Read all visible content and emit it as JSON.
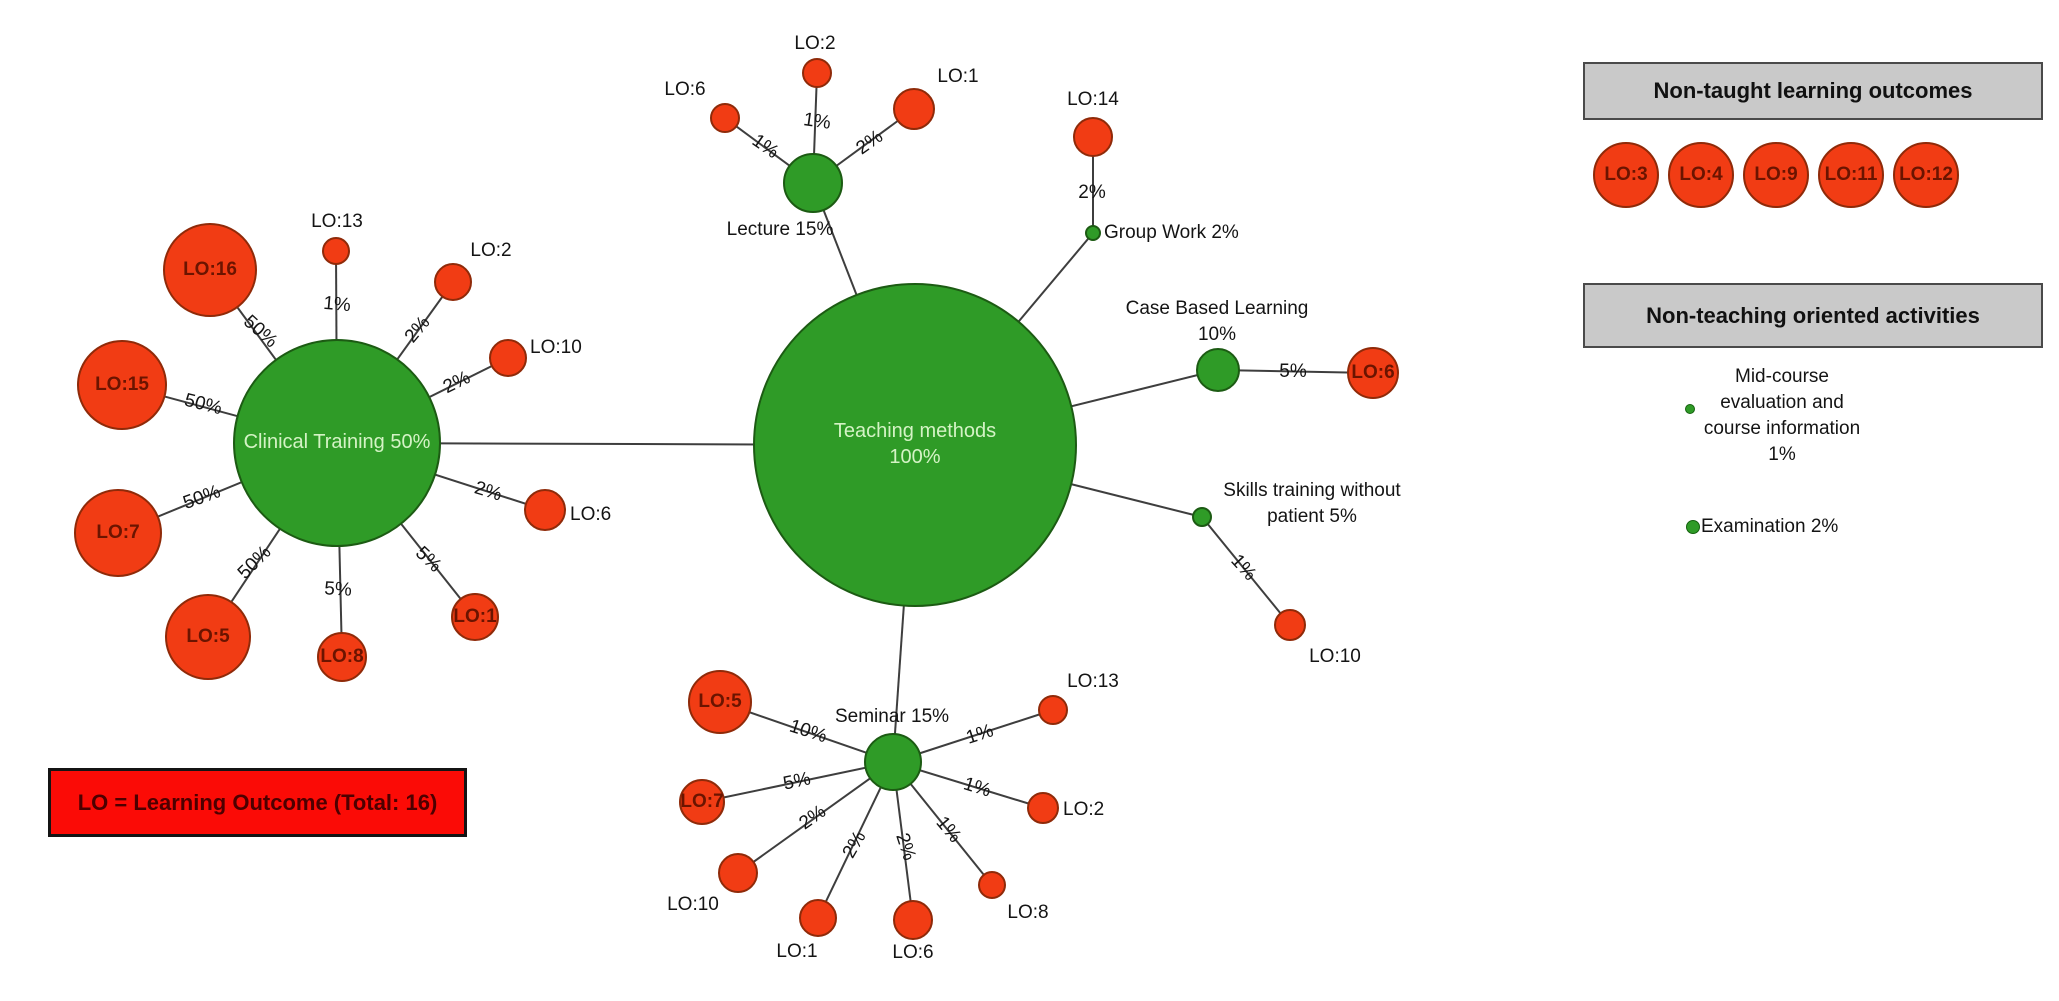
{
  "colors": {
    "method_green": "#2f9b27",
    "outcome_red": "#f13c14",
    "legend_gray": "#c9c9c9",
    "note_red": "#fb0b06",
    "edge_gray": "#3e3e3e",
    "green_label_text": "#d4f3c5",
    "red_label_text": "#6b1400"
  },
  "nodes": [
    {
      "id": "teaching",
      "label": "Teaching methods\n100%"
    },
    {
      "id": "clinical",
      "label": "Clinical Training 50%"
    },
    {
      "id": "lecture",
      "label": "Lecture 15%"
    },
    {
      "id": "seminar",
      "label": "Seminar 15%"
    },
    {
      "id": "casebased",
      "label": "Case Based Learning\n10%"
    },
    {
      "id": "skills",
      "label": "Skills training without\npatient 5%"
    },
    {
      "id": "groupwork",
      "label": "Group Work 2%"
    },
    {
      "id": "lec_lo6",
      "label": "LO:6"
    },
    {
      "id": "lec_lo2",
      "label": "LO:2"
    },
    {
      "id": "lec_lo1",
      "label": "LO:1"
    },
    {
      "id": "gw_lo14",
      "label": "LO:14"
    },
    {
      "id": "cb_lo6",
      "label": "LO:6"
    },
    {
      "id": "sk_lo10",
      "label": "LO:10"
    },
    {
      "id": "sem_lo5",
      "label": "LO:5"
    },
    {
      "id": "sem_lo7",
      "label": "LO:7"
    },
    {
      "id": "sem_lo10",
      "label": "LO:10"
    },
    {
      "id": "sem_lo1",
      "label": "LO:1"
    },
    {
      "id": "sem_lo6",
      "label": "LO:6"
    },
    {
      "id": "sem_lo8",
      "label": "LO:8"
    },
    {
      "id": "sem_lo2",
      "label": "LO:2"
    },
    {
      "id": "sem_lo13",
      "label": "LO:13"
    },
    {
      "id": "cl_lo16",
      "label": "LO:16"
    },
    {
      "id": "cl_lo15",
      "label": "LO:15"
    },
    {
      "id": "cl_lo7",
      "label": "LO:7"
    },
    {
      "id": "cl_lo5",
      "label": "LO:5"
    },
    {
      "id": "cl_lo8",
      "label": "LO:8"
    },
    {
      "id": "cl_lo1",
      "label": "LO:1"
    },
    {
      "id": "cl_lo6",
      "label": "LO:6"
    },
    {
      "id": "cl_lo10",
      "label": "LO:10"
    },
    {
      "id": "cl_lo2",
      "label": "LO:2"
    },
    {
      "id": "cl_lo13",
      "label": "LO:13"
    }
  ],
  "edges": [
    {
      "from": "teaching",
      "to": "lecture",
      "label": ""
    },
    {
      "from": "teaching",
      "to": "groupwork",
      "label": ""
    },
    {
      "from": "teaching",
      "to": "casebased",
      "label": ""
    },
    {
      "from": "teaching",
      "to": "skills",
      "label": ""
    },
    {
      "from": "teaching",
      "to": "seminar",
      "label": ""
    },
    {
      "from": "teaching",
      "to": "clinical",
      "label": ""
    },
    {
      "from": "lecture",
      "to": "lec_lo6",
      "label": "1%"
    },
    {
      "from": "lecture",
      "to": "lec_lo2",
      "label": "1%"
    },
    {
      "from": "lecture",
      "to": "lec_lo1",
      "label": "2%"
    },
    {
      "from": "groupwork",
      "to": "gw_lo14",
      "label": "2%"
    },
    {
      "from": "casebased",
      "to": "cb_lo6",
      "label": "5%"
    },
    {
      "from": "skills",
      "to": "sk_lo10",
      "label": "1%"
    },
    {
      "from": "seminar",
      "to": "sem_lo5",
      "label": "10%"
    },
    {
      "from": "seminar",
      "to": "sem_lo7",
      "label": "5%"
    },
    {
      "from": "seminar",
      "to": "sem_lo10",
      "label": "2%"
    },
    {
      "from": "seminar",
      "to": "sem_lo1",
      "label": "2%"
    },
    {
      "from": "seminar",
      "to": "sem_lo6",
      "label": "2%"
    },
    {
      "from": "seminar",
      "to": "sem_lo8",
      "label": "1%"
    },
    {
      "from": "seminar",
      "to": "sem_lo2",
      "label": "1%"
    },
    {
      "from": "seminar",
      "to": "sem_lo13",
      "label": "1%"
    },
    {
      "from": "clinical",
      "to": "cl_lo16",
      "label": "50%"
    },
    {
      "from": "clinical",
      "to": "cl_lo15",
      "label": "50%"
    },
    {
      "from": "clinical",
      "to": "cl_lo7",
      "label": "50%"
    },
    {
      "from": "clinical",
      "to": "cl_lo5",
      "label": "50%"
    },
    {
      "from": "clinical",
      "to": "cl_lo8",
      "label": "5%"
    },
    {
      "from": "clinical",
      "to": "cl_lo1",
      "label": "5%"
    },
    {
      "from": "clinical",
      "to": "cl_lo6",
      "label": "2%"
    },
    {
      "from": "clinical",
      "to": "cl_lo10",
      "label": "2%"
    },
    {
      "from": "clinical",
      "to": "cl_lo2",
      "label": "2%"
    },
    {
      "from": "clinical",
      "to": "cl_lo13",
      "label": "1%"
    }
  ],
  "legend_non_taught": {
    "title": "Non-taught learning outcomes",
    "items": [
      "LO:3",
      "LO:4",
      "LO:9",
      "LO:11",
      "LO:12"
    ]
  },
  "legend_non_teaching": {
    "title": "Non-teaching oriented activities",
    "entries": [
      {
        "label": "Mid-course\nevaluation and\ncourse information\n1%"
      },
      {
        "label": "Examination 2%"
      }
    ]
  },
  "note": "LO = Learning Outcome (Total: 16)"
}
